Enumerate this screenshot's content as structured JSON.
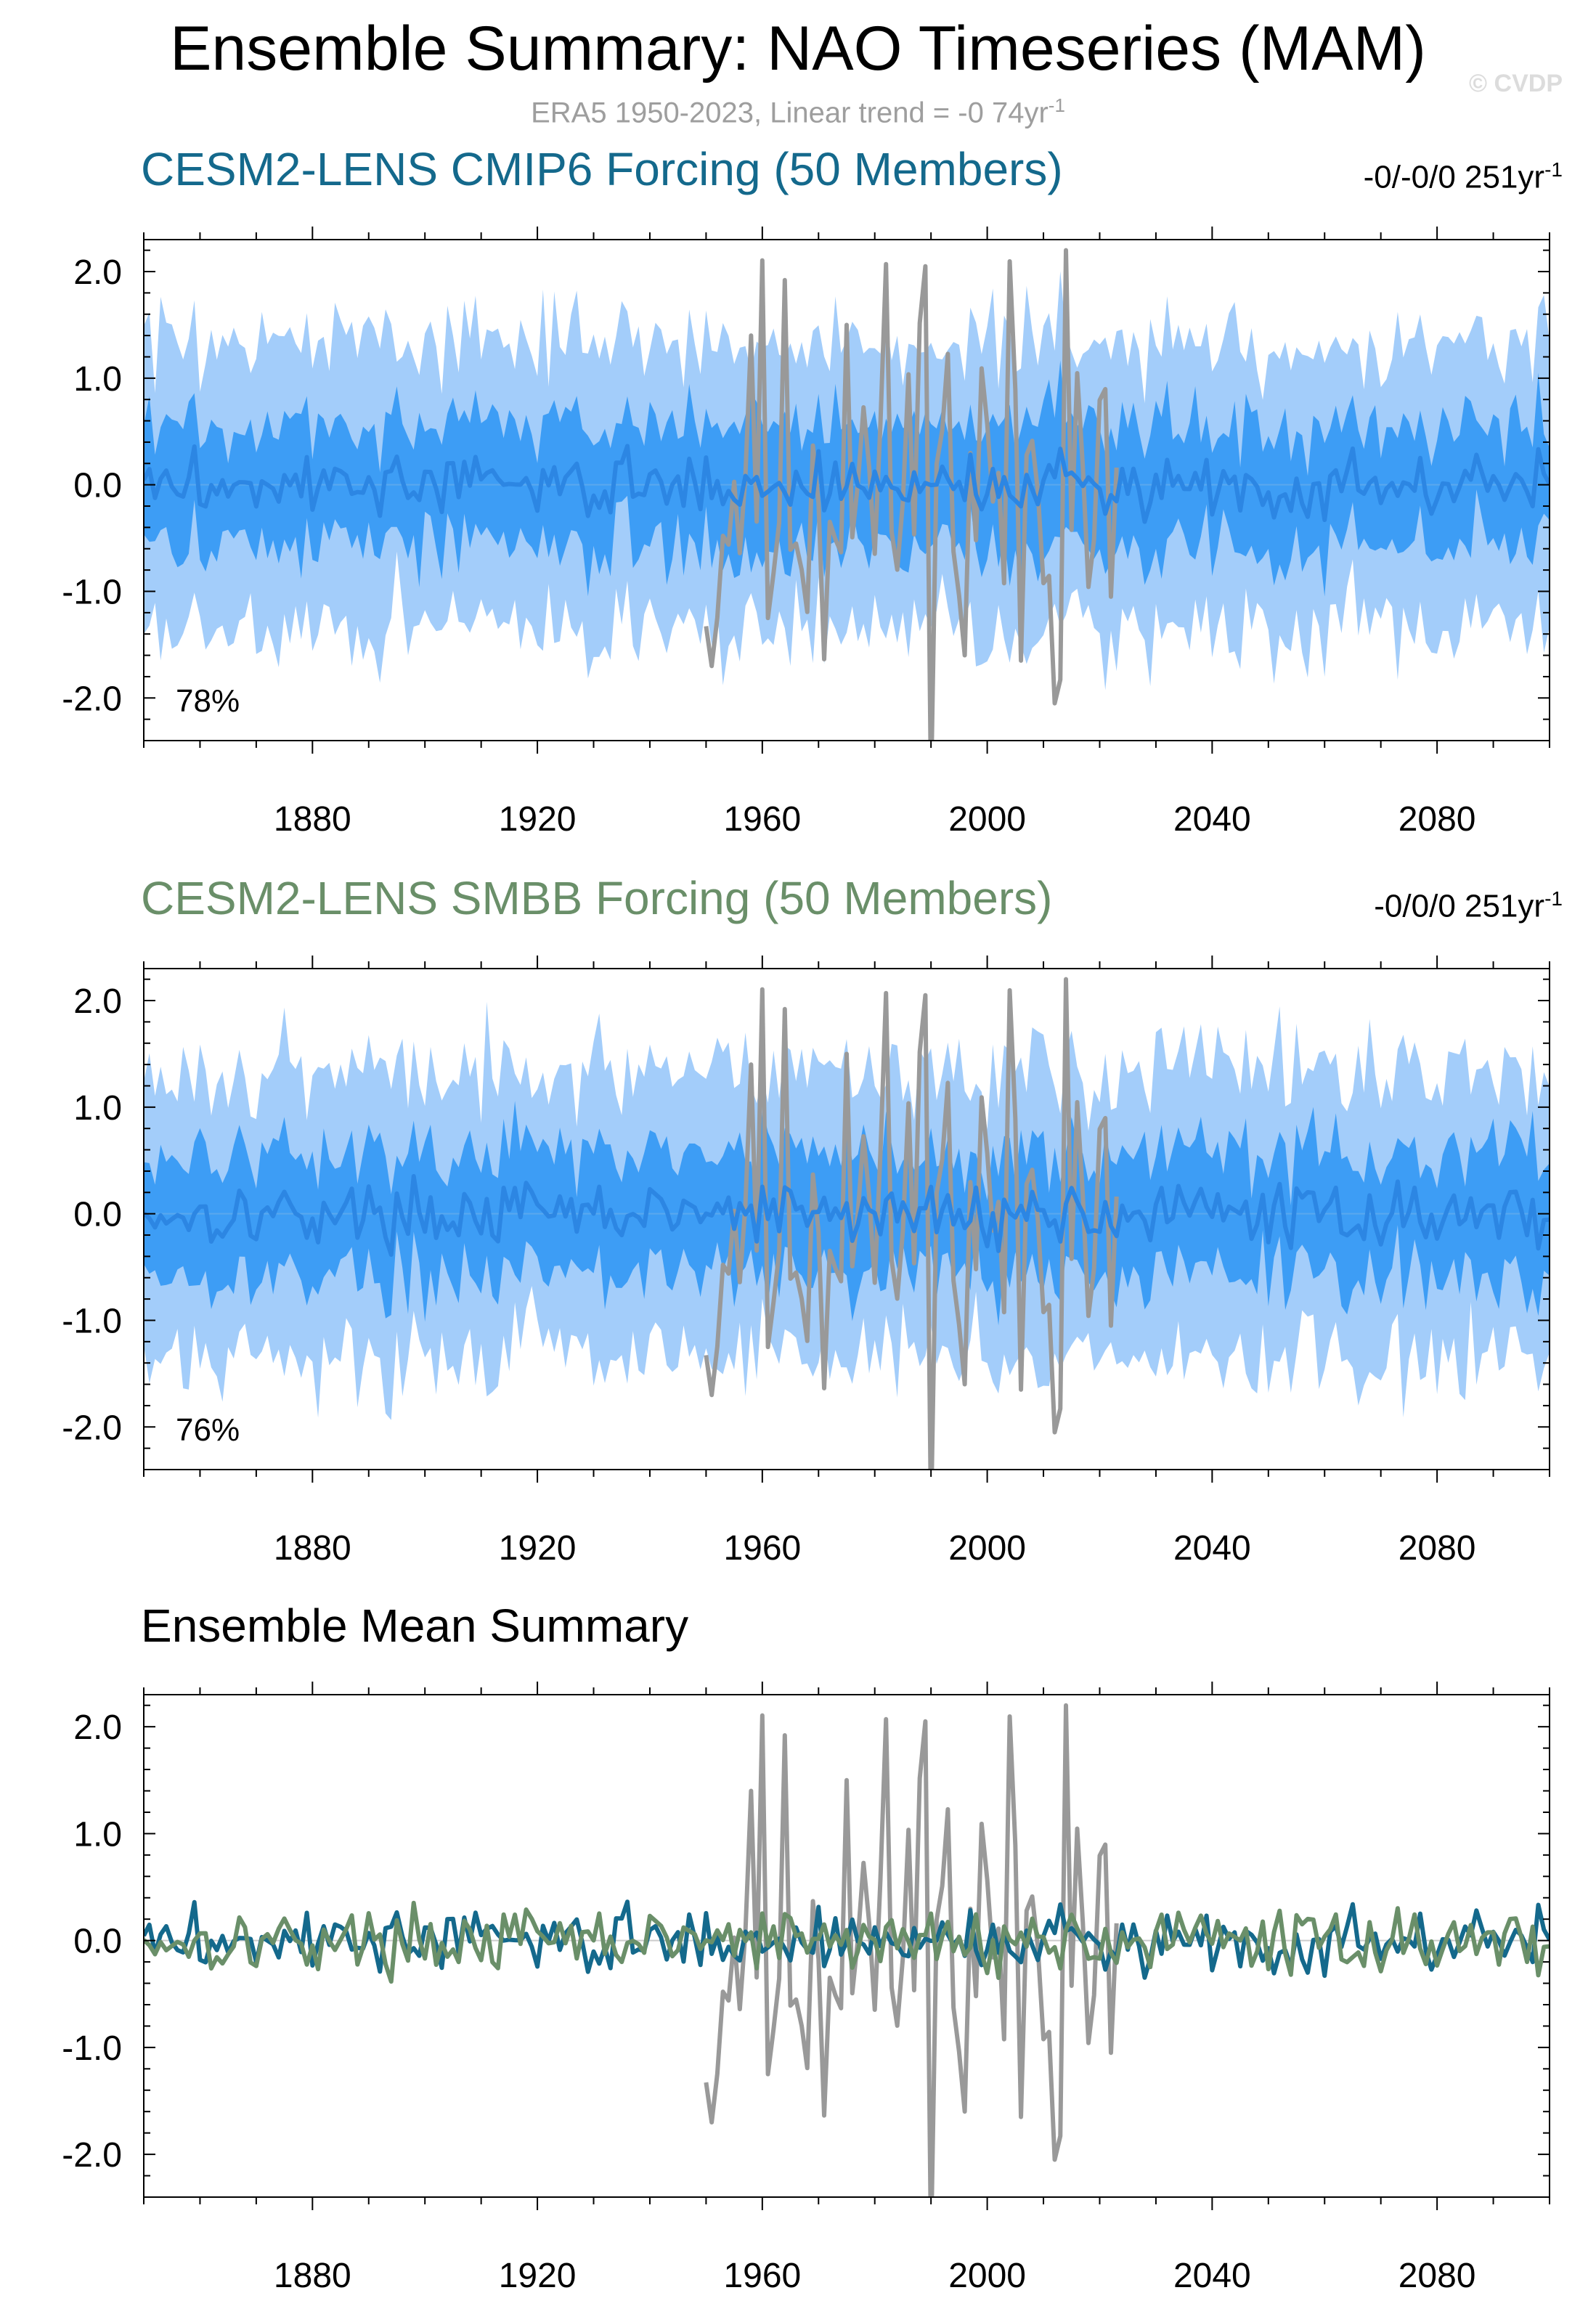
{
  "header": {
    "title": "Ensemble Summary: NAO Timeseries (MAM)",
    "subtitle": "ERA5 1950-2023, Linear trend = -0 74yr",
    "subtitle_sup": "-1",
    "watermark": "© CVDP"
  },
  "colors": {
    "spread_outer": "#a3cdfa",
    "spread_inner": "#3d9df5",
    "ens_mean_line": "#2c86e3",
    "obs": "#999999",
    "cmip6": "#14698c",
    "smbb": "#6a8f69",
    "zero_line": "#cccccc"
  },
  "chart_data": [
    {
      "type": "line",
      "title": "CESM2-LENS CMIP6 Forcing (50 Members)",
      "title_color": "#14698c",
      "trend_text": "-0/-0/0 251yr",
      "trend_sup": "-1",
      "pct_label": "78%",
      "x_range": [
        1850,
        2100
      ],
      "ylim": [
        -2.4,
        2.3
      ],
      "yticks": [
        -2.0,
        -1.0,
        0.0,
        1.0,
        2.0
      ],
      "ytick_labels": [
        "-2.0",
        "-1.0",
        "0.0",
        "1.0",
        "2.0"
      ],
      "xticks": [
        1880,
        1920,
        1960,
        2000,
        2040,
        2080
      ],
      "xtick_labels": [
        "1880",
        "1920",
        "1960",
        "2000",
        "2040",
        "2080"
      ],
      "series": [
        {
          "name": "ERA5 observed",
          "x_start": 1950,
          "x_end": 2023,
          "seed": 11,
          "amp": 1.05,
          "forced": [
            [
              1951,
              -1.7
            ],
            [
              1958,
              1.4
            ],
            [
              1961,
              -1.25
            ],
            [
              1975,
              1.5
            ],
            [
              1989,
              2.05
            ],
            [
              1996,
              -1.6
            ],
            [
              2006,
              -1.65
            ],
            [
              2012,
              -2.05
            ],
            [
              2014,
              2.2
            ],
            [
              2022,
              -1.05
            ]
          ]
        },
        {
          "name": "Ensemble mean",
          "x_start": 1850,
          "x_end": 2100,
          "seed": 3,
          "amp": 0.14
        },
        {
          "name": "Spread 25-75%",
          "x_start": 1850,
          "x_end": 2100,
          "seed": 5,
          "amp": 0.12,
          "center": 0.58
        },
        {
          "name": "Spread 10-90%",
          "x_start": 1850,
          "x_end": 2100,
          "seed": 7,
          "amp": 0.18,
          "center": 1.35
        }
      ]
    },
    {
      "type": "line",
      "title": "CESM2-LENS SMBB Forcing (50 Members)",
      "title_color": "#6a8f69",
      "trend_text": "-0/0/0 251yr",
      "trend_sup": "-1",
      "pct_label": "76%",
      "x_range": [
        1850,
        2100
      ],
      "ylim": [
        -2.4,
        2.3
      ],
      "yticks": [
        -2.0,
        -1.0,
        0.0,
        1.0,
        2.0
      ],
      "ytick_labels": [
        "-2.0",
        "-1.0",
        "0.0",
        "1.0",
        "2.0"
      ],
      "xticks": [
        1880,
        1920,
        1960,
        2000,
        2040,
        2080
      ],
      "xtick_labels": [
        "1880",
        "1920",
        "1960",
        "2000",
        "2040",
        "2080"
      ],
      "series": [
        {
          "name": "ERA5 observed",
          "x_start": 1950,
          "x_end": 2023,
          "seed": 11,
          "amp": 1.05,
          "forced": [
            [
              1951,
              -1.7
            ],
            [
              1958,
              1.4
            ],
            [
              1961,
              -1.25
            ],
            [
              1975,
              1.5
            ],
            [
              1989,
              2.05
            ],
            [
              1996,
              -1.6
            ],
            [
              2006,
              -1.65
            ],
            [
              2012,
              -2.05
            ],
            [
              2014,
              2.2
            ],
            [
              2022,
              -1.05
            ]
          ]
        },
        {
          "name": "Ensemble mean",
          "x_start": 1850,
          "x_end": 2100,
          "seed": 17,
          "amp": 0.14
        },
        {
          "name": "Spread 25-75%",
          "x_start": 1850,
          "x_end": 2100,
          "seed": 19,
          "amp": 0.12,
          "center": 0.58
        },
        {
          "name": "Spread 10-90%",
          "x_start": 1850,
          "x_end": 2100,
          "seed": 23,
          "amp": 0.18,
          "center": 1.35
        }
      ]
    },
    {
      "type": "line",
      "title": "Ensemble Mean Summary",
      "title_color": "#000000",
      "x_range": [
        1850,
        2100
      ],
      "ylim": [
        -2.4,
        2.3
      ],
      "yticks": [
        -2.0,
        -1.0,
        0.0,
        1.0,
        2.0
      ],
      "ytick_labels": [
        "-2.0",
        "-1.0",
        "0.0",
        "1.0",
        "2.0"
      ],
      "xticks": [
        1880,
        1920,
        1960,
        2000,
        2040,
        2080
      ],
      "xtick_labels": [
        "1880",
        "1920",
        "1960",
        "2000",
        "2040",
        "2080"
      ],
      "series": [
        {
          "name": "ERA5 observed",
          "x_start": 1950,
          "x_end": 2023,
          "seed": 11,
          "amp": 1.05,
          "forced": [
            [
              1951,
              -1.7
            ],
            [
              1958,
              1.4
            ],
            [
              1961,
              -1.25
            ],
            [
              1975,
              1.5
            ],
            [
              1989,
              2.05
            ],
            [
              1996,
              -1.6
            ],
            [
              2006,
              -1.65
            ],
            [
              2012,
              -2.05
            ],
            [
              2014,
              2.2
            ],
            [
              2022,
              -1.05
            ]
          ]
        },
        {
          "name": "CESM2-LENS CMIP6 ensemble mean",
          "x_start": 1850,
          "x_end": 2100,
          "seed": 3,
          "amp": 0.14
        },
        {
          "name": "CESM2-LENS SMBB ensemble mean",
          "x_start": 1850,
          "x_end": 2100,
          "seed": 17,
          "amp": 0.14
        }
      ]
    }
  ]
}
